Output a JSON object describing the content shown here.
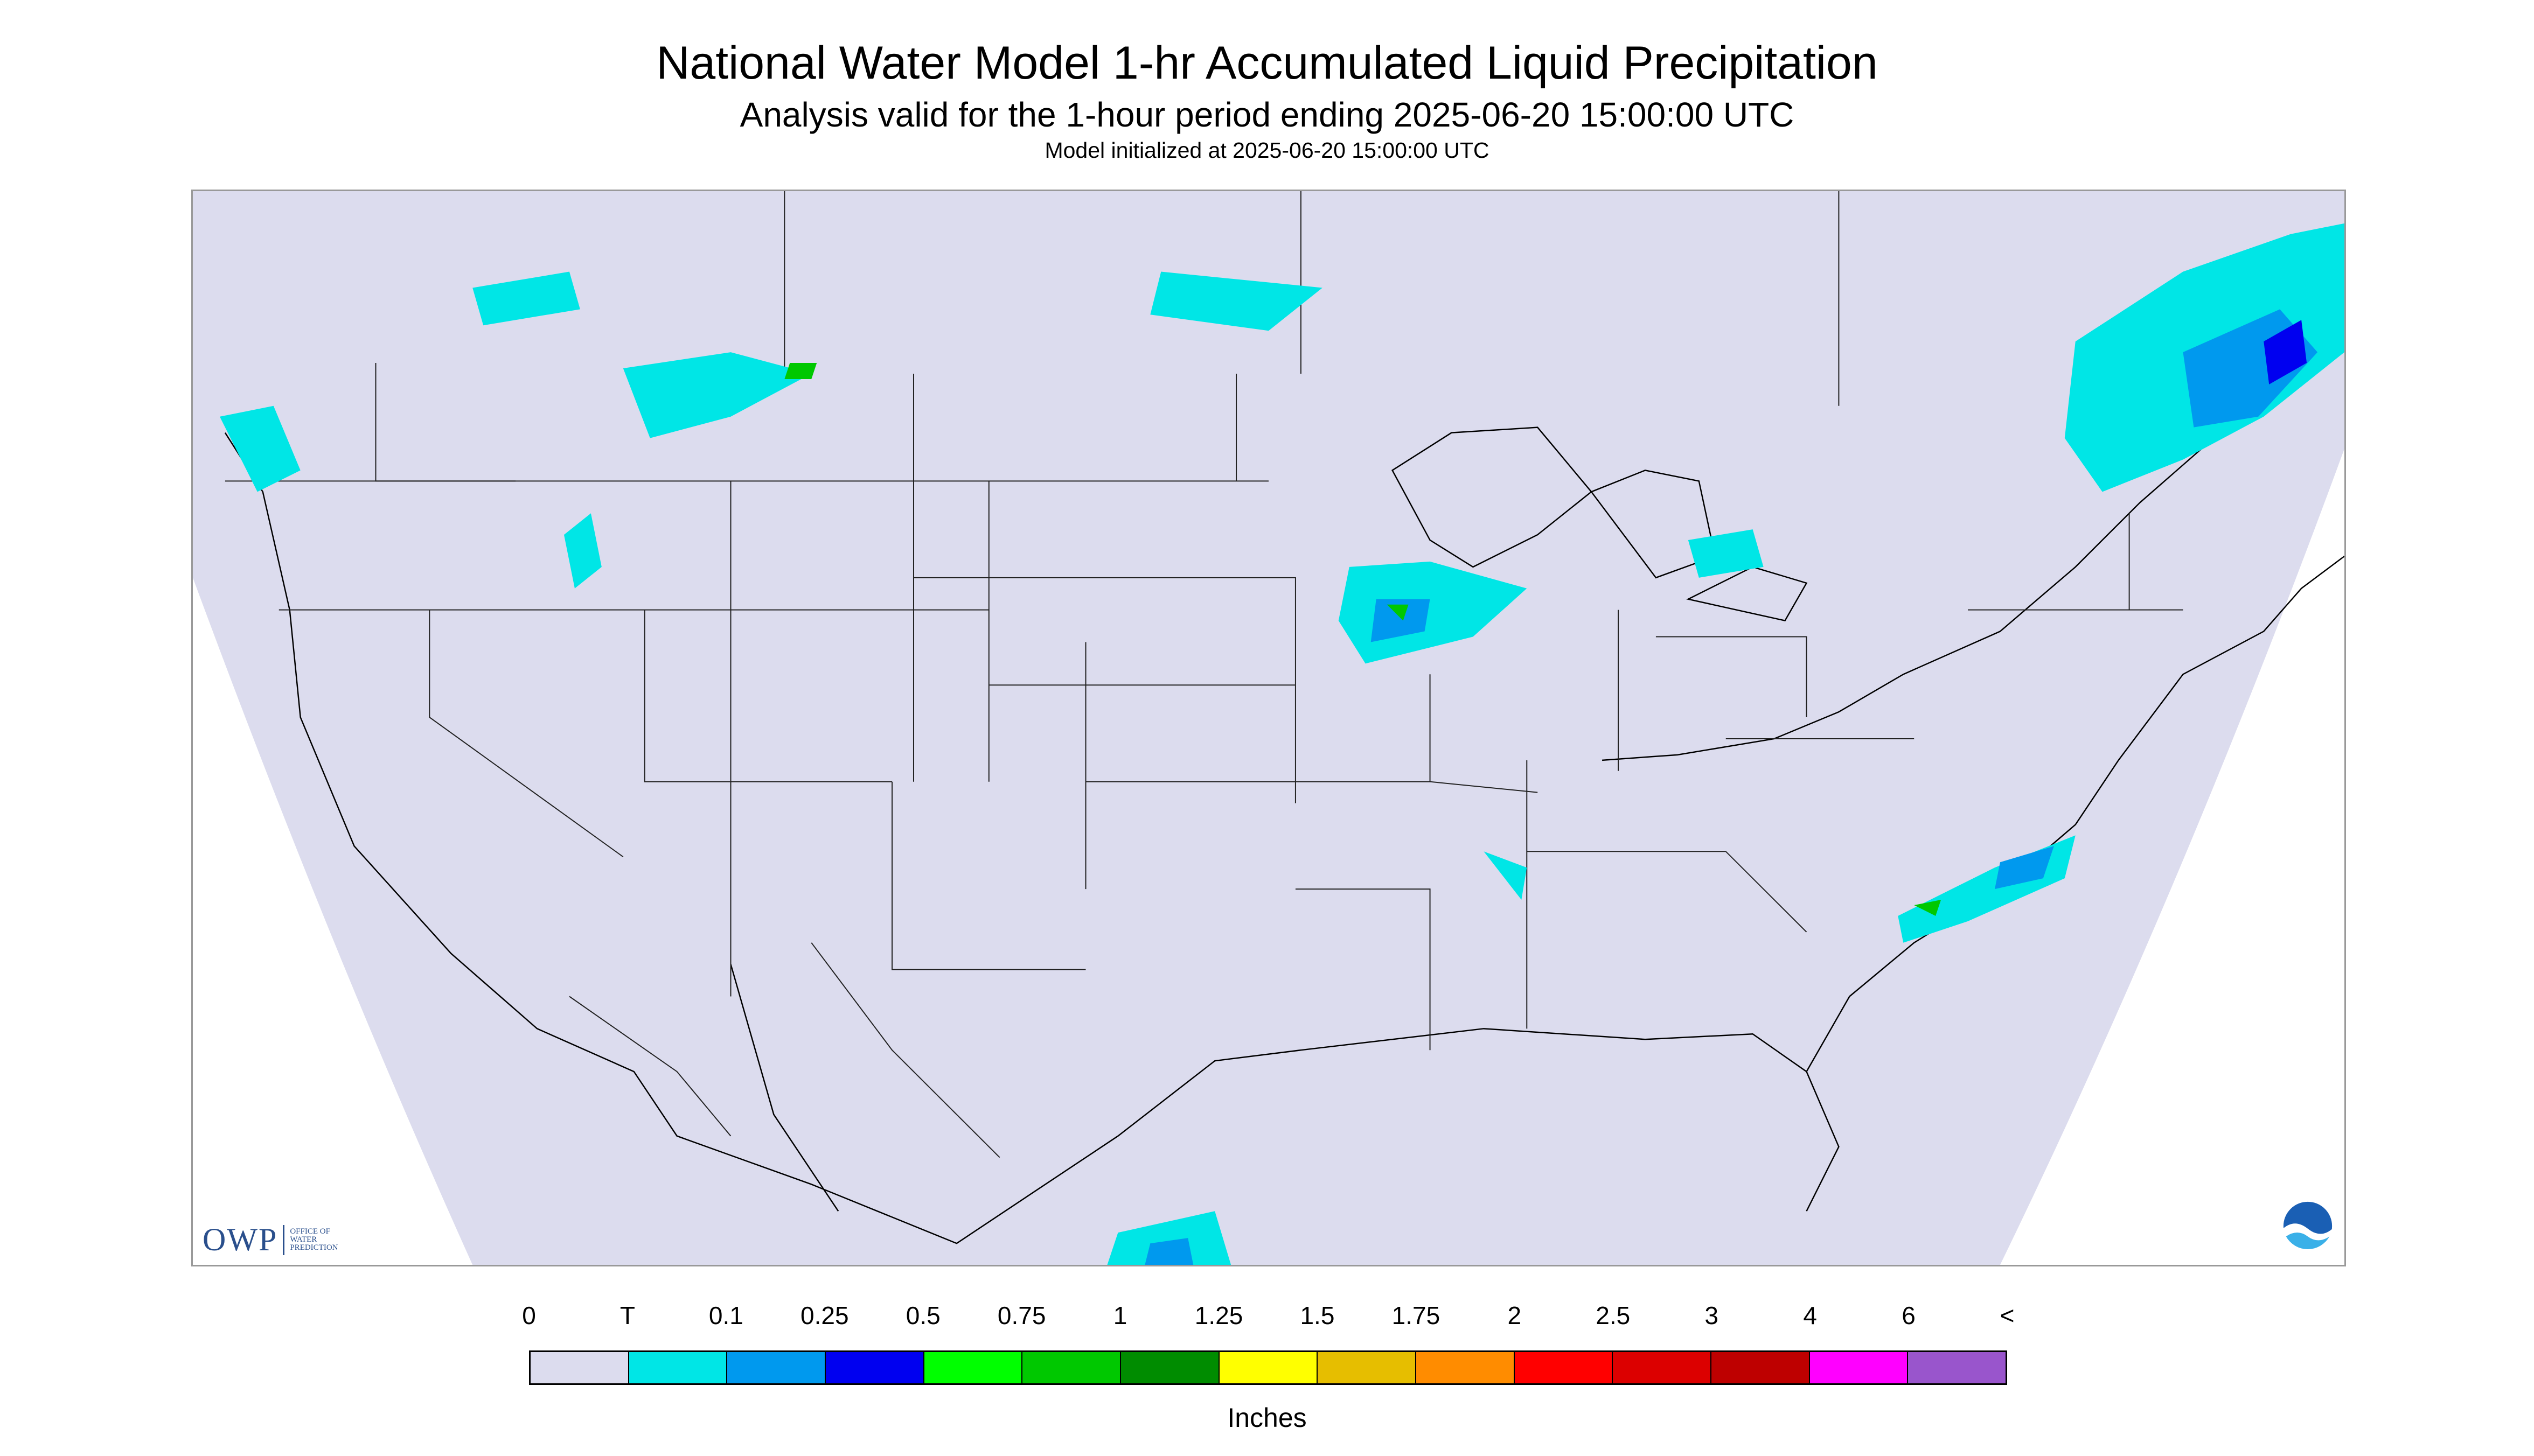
{
  "header": {
    "title": "National Water Model 1-hr Accumulated Liquid Precipitation",
    "subtitle": "Analysis valid for the 1-hour period ending 2025-06-20 15:00:00 UTC",
    "init_line": "Model initialized at 2025-06-20 15:00:00 UTC"
  },
  "map": {
    "region": "Contiguous United States",
    "background_color": "#dcdcee",
    "outside_color": "#ffffff",
    "boundary_color": "#000000"
  },
  "logos": {
    "owp_text": "OWP",
    "owp_sub_lines": [
      "OFFICE OF",
      "WATER",
      "PREDICTION"
    ],
    "noaa_icon": "noaa-logo-icon"
  },
  "legend": {
    "tick_labels": [
      "0",
      "T",
      "0.1",
      "0.25",
      "0.5",
      "0.75",
      "1",
      "1.25",
      "1.5",
      "1.75",
      "2",
      "2.5",
      "3",
      "4",
      "6",
      "<"
    ],
    "colors": [
      "#dcdcee",
      "#00e6e6",
      "#0099ee",
      "#0000f0",
      "#00ff00",
      "#00c800",
      "#008c00",
      "#ffff00",
      "#e6be00",
      "#ff8c00",
      "#ff0000",
      "#dc0000",
      "#be0000",
      "#ff00ff",
      "#9955cc"
    ],
    "units": "Inches"
  }
}
